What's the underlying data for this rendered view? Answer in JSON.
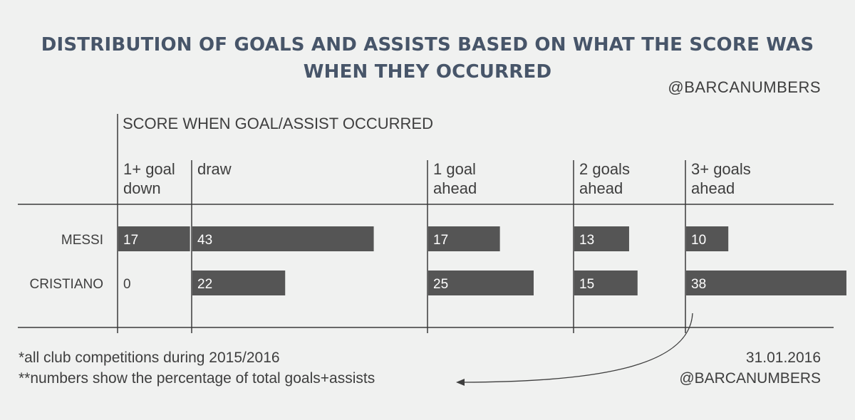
{
  "title_lines": [
    "DISTRIBUTION OF GOALS AND ASSISTS BASED ON WHAT THE SCORE WAS",
    "WHEN THEY OCCURRED"
  ],
  "handle_top": "@BARCANUMBERS",
  "chart_data": {
    "type": "bar",
    "orientation": "horizontal-small-multiples",
    "title": "DISTRIBUTION OF GOALS AND ASSISTS BASED ON WHAT THE SCORE WAS WHEN THEY OCCURRED",
    "group_label": "SCORE WHEN GOAL/ASSIST OCCURRED",
    "categories": [
      [
        "1+ goal",
        "down"
      ],
      [
        "draw"
      ],
      [
        "1 goal",
        "ahead"
      ],
      [
        "2 goals",
        "ahead"
      ],
      [
        "3+ goals",
        "ahead"
      ]
    ],
    "series": [
      {
        "name": "MESSI",
        "values": [
          17,
          43,
          17,
          13,
          10
        ]
      },
      {
        "name": "CRISTIANO",
        "values": [
          0,
          22,
          25,
          15,
          38
        ]
      }
    ],
    "unit": "percentage of total goals+assists",
    "bar_color": "#555555"
  },
  "footnotes": [
    "*all club competitions during 2015/2016",
    "**numbers show the percentage of total goals+assists"
  ],
  "date": "31.01.2016",
  "handle_bottom": "@BARCANUMBERS"
}
